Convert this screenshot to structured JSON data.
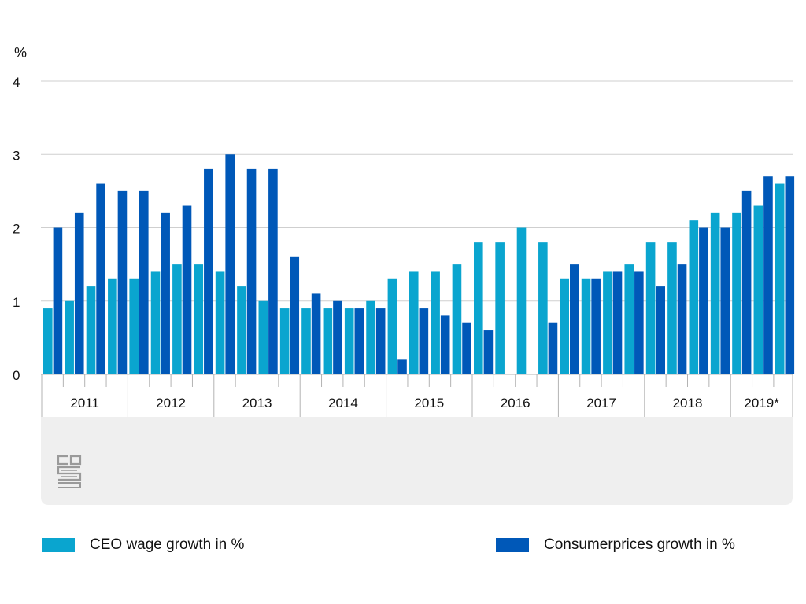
{
  "colors": {
    "ceo": "#0aa5cf",
    "cpi": "#0058b8",
    "gridline": "#cfcfcf",
    "footer_bg": "#efefef",
    "axis": "#b3b3b3"
  },
  "icons": {
    "logo": "cbs-logo"
  },
  "chart_data": {
    "type": "bar",
    "ylabel": "%",
    "ylim": [
      0,
      4
    ],
    "yticks": [
      0,
      1,
      2,
      3,
      4
    ],
    "grid": true,
    "legend_position": "bottom",
    "years": [
      "2011",
      "2012",
      "2013",
      "2014",
      "2015",
      "2016",
      "2017",
      "2018",
      "2019*"
    ],
    "quarters_per_year": [
      4,
      4,
      4,
      4,
      4,
      4,
      4,
      4,
      3
    ],
    "series": [
      {
        "name": "CEO wage growth in %",
        "values": [
          0.9,
          1.0,
          1.2,
          1.3,
          1.3,
          1.4,
          1.5,
          1.5,
          1.4,
          1.2,
          1.0,
          0.9,
          0.9,
          0.9,
          0.9,
          1.0,
          1.3,
          1.4,
          1.4,
          1.5,
          1.8,
          1.8,
          2.0,
          1.8,
          1.3,
          1.3,
          1.4,
          1.5,
          1.8,
          1.8,
          2.1,
          2.2,
          2.2,
          2.3,
          2.6
        ]
      },
      {
        "name": "Consumerprices growth in %",
        "values": [
          2.0,
          2.2,
          2.6,
          2.5,
          2.5,
          2.2,
          2.3,
          2.8,
          3.0,
          2.8,
          2.8,
          1.6,
          1.1,
          1.0,
          0.9,
          0.9,
          0.2,
          0.9,
          0.8,
          0.7,
          0.6,
          0.0,
          0.0,
          0.7,
          1.5,
          1.3,
          1.4,
          1.4,
          1.2,
          1.5,
          2.0,
          2.0,
          2.5,
          2.7,
          2.7
        ]
      }
    ]
  }
}
